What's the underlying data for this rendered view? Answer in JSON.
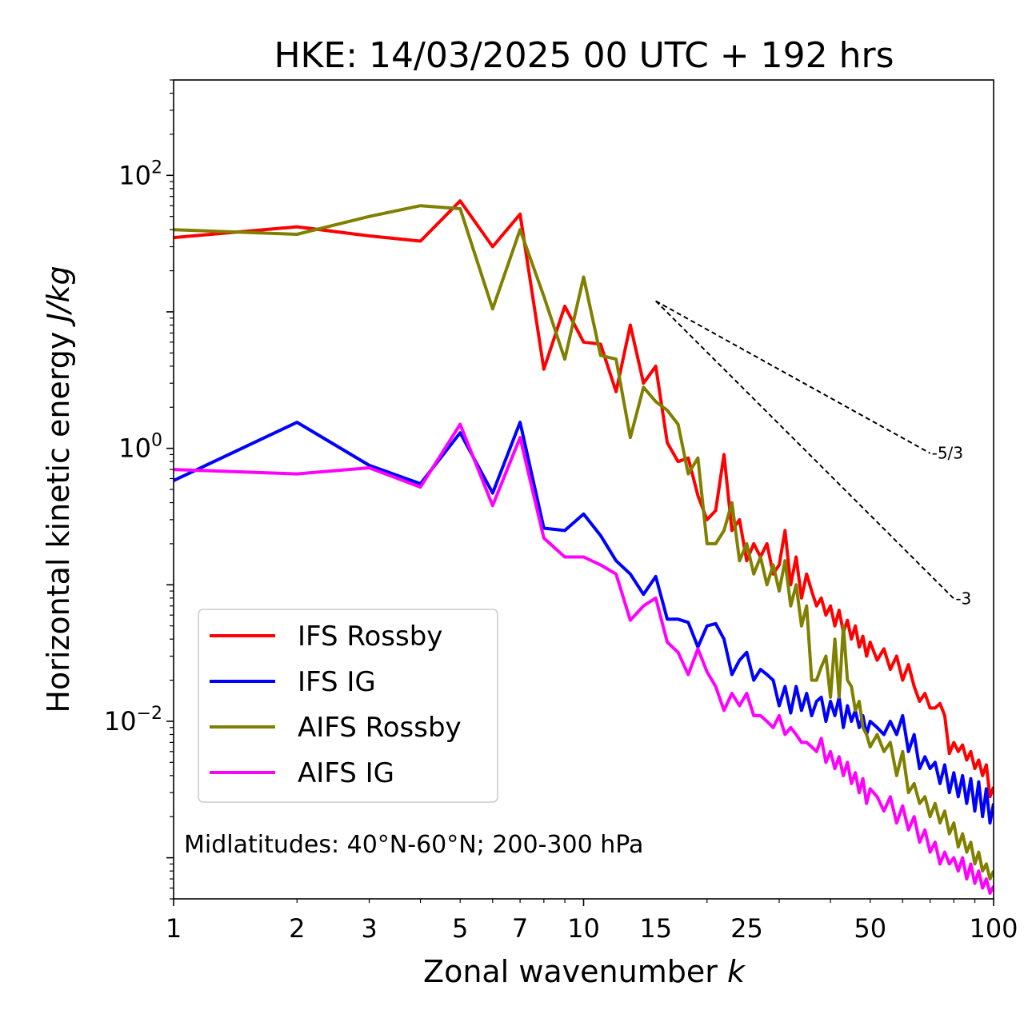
{
  "chart_data": {
    "type": "line",
    "title": "HKE: 14/03/2025 00 UTC + 192 hrs",
    "xlabel": "Zonal wavenumber",
    "xlabel_var": "k",
    "ylabel": "Horizontal kinetic energy",
    "ylabel_unit": "J/kg",
    "xscale": "log",
    "yscale": "log",
    "xlim": [
      1,
      100
    ],
    "ylim": [
      0.0005,
      500
    ],
    "x_ticks": [
      {
        "value": 1,
        "label": "1"
      },
      {
        "value": 2,
        "label": "2"
      },
      {
        "value": 3,
        "label": "3"
      },
      {
        "value": 5,
        "label": "5"
      },
      {
        "value": 7,
        "label": "7"
      },
      {
        "value": 10,
        "label": "10"
      },
      {
        "value": 15,
        "label": "15"
      },
      {
        "value": 25,
        "label": "25"
      },
      {
        "value": 50,
        "label": "50"
      },
      {
        "value": 100,
        "label": "100"
      }
    ],
    "y_ticks": [
      {
        "value": 100,
        "base": "10",
        "exp": "2"
      },
      {
        "value": 1,
        "base": "10",
        "exp": "0"
      },
      {
        "value": 0.01,
        "base": "10",
        "exp": "−2"
      }
    ],
    "grid": false,
    "legend_position": "lower-left",
    "annotation": "Midlatitudes: 40°N-60°N; 200-300 hPa",
    "reference_lines": [
      {
        "label": "-5/3",
        "slope": -1.6667,
        "x": [
          15,
          70
        ],
        "y_start": 12.0
      },
      {
        "label": "-3",
        "slope": -3,
        "x": [
          15,
          80
        ],
        "y_start": 12.0
      }
    ],
    "series": [
      {
        "name": "IFS Rossby",
        "color": "#ff0000",
        "points": [
          [
            1,
            35
          ],
          [
            2,
            42
          ],
          [
            3,
            36
          ],
          [
            4,
            33
          ],
          [
            5,
            65
          ],
          [
            6,
            30
          ],
          [
            7,
            52
          ],
          [
            8,
            3.8
          ],
          [
            9,
            11
          ],
          [
            10,
            6
          ],
          [
            11,
            5.8
          ],
          [
            12,
            2.6
          ],
          [
            13,
            8
          ],
          [
            14,
            3
          ],
          [
            15,
            4
          ],
          [
            16,
            1.1
          ],
          [
            17,
            0.8
          ],
          [
            18,
            0.85
          ],
          [
            19,
            0.45
          ],
          [
            20,
            0.3
          ],
          [
            21,
            0.35
          ],
          [
            22,
            0.9
          ],
          [
            23,
            0.25
          ],
          [
            24,
            0.3
          ],
          [
            25,
            0.15
          ],
          [
            26,
            0.2
          ],
          [
            27,
            0.16
          ],
          [
            28,
            0.2
          ],
          [
            29,
            0.12
          ],
          [
            30,
            0.14
          ],
          [
            31,
            0.25
          ],
          [
            32,
            0.1
          ],
          [
            33,
            0.16
          ],
          [
            34,
            0.08
          ],
          [
            35,
            0.12
          ],
          [
            36,
            0.09
          ],
          [
            37,
            0.07
          ],
          [
            38,
            0.08
          ],
          [
            39,
            0.06
          ],
          [
            40,
            0.07
          ],
          [
            41,
            0.05
          ],
          [
            42,
            0.065
          ],
          [
            43,
            0.045
          ],
          [
            44,
            0.055
          ],
          [
            45,
            0.04
          ],
          [
            46,
            0.05
          ],
          [
            47,
            0.035
          ],
          [
            48,
            0.042
          ],
          [
            49,
            0.03
          ],
          [
            50,
            0.038
          ],
          [
            52,
            0.028
          ],
          [
            54,
            0.034
          ],
          [
            56,
            0.024
          ],
          [
            58,
            0.03
          ],
          [
            60,
            0.02
          ],
          [
            62,
            0.026
          ],
          [
            64,
            0.018
          ],
          [
            66,
            0.014
          ],
          [
            68,
            0.016
          ],
          [
            70,
            0.0125
          ],
          [
            72,
            0.0125
          ],
          [
            74,
            0.0135
          ],
          [
            76,
            0.011
          ],
          [
            78,
            0.0058
          ],
          [
            80,
            0.007
          ],
          [
            82,
            0.006
          ],
          [
            84,
            0.0067
          ],
          [
            86,
            0.0052
          ],
          [
            88,
            0.006
          ],
          [
            90,
            0.0045
          ],
          [
            92,
            0.0052
          ],
          [
            94,
            0.004
          ],
          [
            96,
            0.0048
          ],
          [
            98,
            0.0028
          ],
          [
            100,
            0.0033
          ]
        ]
      },
      {
        "name": "IFS IG",
        "color": "#0000ff",
        "points": [
          [
            1,
            0.58
          ],
          [
            2,
            1.55
          ],
          [
            3,
            0.75
          ],
          [
            4,
            0.55
          ],
          [
            5,
            1.3
          ],
          [
            6,
            0.47
          ],
          [
            7,
            1.55
          ],
          [
            8,
            0.26
          ],
          [
            9,
            0.25
          ],
          [
            10,
            0.33
          ],
          [
            11,
            0.23
          ],
          [
            12,
            0.15
          ],
          [
            13,
            0.12
          ],
          [
            14,
            0.085
          ],
          [
            15,
            0.115
          ],
          [
            16,
            0.056
          ],
          [
            17,
            0.056
          ],
          [
            18,
            0.053
          ],
          [
            19,
            0.035
          ],
          [
            20,
            0.05
          ],
          [
            21,
            0.052
          ],
          [
            22,
            0.04
          ],
          [
            23,
            0.022
          ],
          [
            24,
            0.028
          ],
          [
            25,
            0.032
          ],
          [
            26,
            0.02
          ],
          [
            27,
            0.024
          ],
          [
            28,
            0.022
          ],
          [
            29,
            0.02
          ],
          [
            30,
            0.013
          ],
          [
            31,
            0.018
          ],
          [
            32,
            0.0115
          ],
          [
            33,
            0.018
          ],
          [
            34,
            0.012
          ],
          [
            35,
            0.016
          ],
          [
            36,
            0.011
          ],
          [
            37,
            0.014
          ],
          [
            38,
            0.015
          ],
          [
            39,
            0.01
          ],
          [
            40,
            0.014
          ],
          [
            41,
            0.011
          ],
          [
            42,
            0.015
          ],
          [
            43,
            0.009
          ],
          [
            44,
            0.013
          ],
          [
            45,
            0.01
          ],
          [
            46,
            0.012
          ],
          [
            47,
            0.009
          ],
          [
            48,
            0.011
          ],
          [
            49,
            0.008
          ],
          [
            50,
            0.01
          ],
          [
            52,
            0.009
          ],
          [
            54,
            0.008
          ],
          [
            56,
            0.01
          ],
          [
            58,
            0.008
          ],
          [
            60,
            0.011
          ],
          [
            62,
            0.006
          ],
          [
            64,
            0.008
          ],
          [
            66,
            0.0045
          ],
          [
            68,
            0.0055
          ],
          [
            70,
            0.0045
          ],
          [
            72,
            0.005
          ],
          [
            74,
            0.0035
          ],
          [
            76,
            0.0048
          ],
          [
            78,
            0.003
          ],
          [
            80,
            0.0042
          ],
          [
            82,
            0.0028
          ],
          [
            84,
            0.004
          ],
          [
            86,
            0.0025
          ],
          [
            88,
            0.0038
          ],
          [
            90,
            0.0022
          ],
          [
            92,
            0.0036
          ],
          [
            94,
            0.002
          ],
          [
            96,
            0.0032
          ],
          [
            98,
            0.0018
          ],
          [
            100,
            0.0025
          ]
        ]
      },
      {
        "name": "AIFS Rossby",
        "color": "#808000",
        "points": [
          [
            1,
            40
          ],
          [
            2,
            37
          ],
          [
            3,
            50
          ],
          [
            4,
            60
          ],
          [
            5,
            57
          ],
          [
            6,
            10.5
          ],
          [
            7,
            40
          ],
          [
            8,
            13
          ],
          [
            9,
            4.5
          ],
          [
            10,
            18
          ],
          [
            11,
            4.8
          ],
          [
            12,
            4.5
          ],
          [
            13,
            1.2
          ],
          [
            14,
            2.8
          ],
          [
            15,
            2.2
          ],
          [
            16,
            1.9
          ],
          [
            17,
            1.5
          ],
          [
            18,
            0.65
          ],
          [
            19,
            0.85
          ],
          [
            20,
            0.2
          ],
          [
            21,
            0.2
          ],
          [
            22,
            0.25
          ],
          [
            23,
            0.4
          ],
          [
            24,
            0.15
          ],
          [
            25,
            0.2
          ],
          [
            26,
            0.12
          ],
          [
            27,
            0.16
          ],
          [
            28,
            0.1
          ],
          [
            29,
            0.14
          ],
          [
            30,
            0.09
          ],
          [
            31,
            0.15
          ],
          [
            32,
            0.07
          ],
          [
            33,
            0.1
          ],
          [
            34,
            0.05
          ],
          [
            35,
            0.07
          ],
          [
            36,
            0.02
          ],
          [
            37,
            0.02
          ],
          [
            38,
            0.025
          ],
          [
            39,
            0.03
          ],
          [
            40,
            0.015
          ],
          [
            41,
            0.04
          ],
          [
            42,
            0.015
          ],
          [
            43,
            0.05
          ],
          [
            44,
            0.02
          ],
          [
            45,
            0.018
          ],
          [
            46,
            0.012
          ],
          [
            47,
            0.014
          ],
          [
            48,
            0.009
          ],
          [
            49,
            0.008
          ],
          [
            50,
            0.0065
          ],
          [
            52,
            0.008
          ],
          [
            54,
            0.006
          ],
          [
            56,
            0.007
          ],
          [
            58,
            0.004
          ],
          [
            60,
            0.006
          ],
          [
            62,
            0.003
          ],
          [
            64,
            0.0035
          ],
          [
            66,
            0.0025
          ],
          [
            68,
            0.0028
          ],
          [
            70,
            0.002
          ],
          [
            72,
            0.0025
          ],
          [
            74,
            0.0018
          ],
          [
            76,
            0.0022
          ],
          [
            78,
            0.0015
          ],
          [
            80,
            0.0018
          ],
          [
            82,
            0.0012
          ],
          [
            84,
            0.0015
          ],
          [
            86,
            0.0011
          ],
          [
            88,
            0.0013
          ],
          [
            90,
            0.0009
          ],
          [
            92,
            0.0011
          ],
          [
            94,
            0.0008
          ],
          [
            96,
            0.0009
          ],
          [
            98,
            0.0007
          ],
          [
            100,
            0.0008
          ]
        ]
      },
      {
        "name": "AIFS IG",
        "color": "#ff00ff",
        "points": [
          [
            1,
            0.7
          ],
          [
            2,
            0.65
          ],
          [
            3,
            0.72
          ],
          [
            4,
            0.52
          ],
          [
            5,
            1.5
          ],
          [
            6,
            0.38
          ],
          [
            7,
            1.2
          ],
          [
            8,
            0.22
          ],
          [
            9,
            0.16
          ],
          [
            10,
            0.16
          ],
          [
            11,
            0.14
          ],
          [
            12,
            0.12
          ],
          [
            13,
            0.055
          ],
          [
            14,
            0.07
          ],
          [
            15,
            0.08
          ],
          [
            16,
            0.038
          ],
          [
            17,
            0.032
          ],
          [
            18,
            0.022
          ],
          [
            19,
            0.034
          ],
          [
            20,
            0.023
          ],
          [
            21,
            0.018
          ],
          [
            22,
            0.012
          ],
          [
            23,
            0.016
          ],
          [
            24,
            0.013
          ],
          [
            25,
            0.016
          ],
          [
            26,
            0.011
          ],
          [
            27,
            0.011
          ],
          [
            28,
            0.01
          ],
          [
            29,
            0.009
          ],
          [
            30,
            0.011
          ],
          [
            31,
            0.008
          ],
          [
            32,
            0.009
          ],
          [
            33,
            0.008
          ],
          [
            34,
            0.007
          ],
          [
            35,
            0.007
          ],
          [
            36,
            0.0065
          ],
          [
            37,
            0.006
          ],
          [
            38,
            0.0075
          ],
          [
            39,
            0.005
          ],
          [
            40,
            0.006
          ],
          [
            41,
            0.0045
          ],
          [
            42,
            0.0055
          ],
          [
            43,
            0.004
          ],
          [
            44,
            0.005
          ],
          [
            45,
            0.0035
          ],
          [
            46,
            0.0042
          ],
          [
            47,
            0.003
          ],
          [
            48,
            0.0038
          ],
          [
            49,
            0.0025
          ],
          [
            50,
            0.0032
          ],
          [
            52,
            0.0028
          ],
          [
            54,
            0.0022
          ],
          [
            56,
            0.0028
          ],
          [
            58,
            0.0018
          ],
          [
            60,
            0.0024
          ],
          [
            62,
            0.0016
          ],
          [
            64,
            0.002
          ],
          [
            66,
            0.0013
          ],
          [
            68,
            0.0016
          ],
          [
            70,
            0.0011
          ],
          [
            72,
            0.0013
          ],
          [
            74,
            0.0009
          ],
          [
            76,
            0.0011
          ],
          [
            78,
            0.0009
          ],
          [
            80,
            0.001
          ],
          [
            82,
            0.0008
          ],
          [
            84,
            0.001
          ],
          [
            86,
            0.0007
          ],
          [
            88,
            0.0009
          ],
          [
            90,
            0.00065
          ],
          [
            92,
            0.0008
          ],
          [
            94,
            0.0006
          ],
          [
            96,
            0.0007
          ],
          [
            98,
            0.00055
          ],
          [
            100,
            0.00062
          ]
        ]
      }
    ]
  }
}
